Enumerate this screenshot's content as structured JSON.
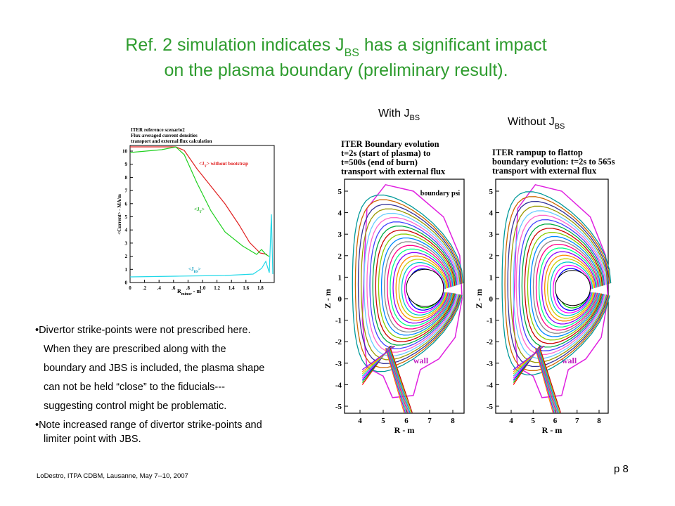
{
  "title": {
    "line1_before": "Ref. 2 simulation indicates J",
    "line1_sub": "BS",
    "line1_after": " has a significant impact",
    "line2": "on the plasma boundary (preliminary result)."
  },
  "labels": {
    "with": {
      "text": "With J",
      "sub": "BS"
    },
    "without": {
      "text": "Without J",
      "sub": "BS"
    }
  },
  "current_plot": {
    "title": [
      "ITER reference scenario2",
      "Flux-averaged current densities",
      "transport and external flux calculation"
    ],
    "ylabel": "<Current> - MA/m",
    "xlabel": {
      "text": "R",
      "sub": "minor",
      "after": " - m"
    },
    "xticks": [
      "0",
      ".2",
      ".4",
      ".6",
      ".8",
      "1.0",
      "1.2",
      "1.4",
      "1.6",
      "1.8"
    ],
    "yticks": [
      "0",
      "1",
      "2",
      "3",
      "4",
      "5",
      "6",
      "7",
      "8",
      "9",
      "10"
    ],
    "annotations": {
      "jt_no_bs": {
        "text": "<J",
        "sub": "T",
        "after": "> without bootstrap"
      },
      "jt": {
        "text": "<J",
        "sub": "T",
        "after": ">"
      },
      "jbs": {
        "text": "<J",
        "sub": "BS",
        "after": ">"
      }
    }
  },
  "boundary_with": {
    "title": [
      "ITER Boundary evolution",
      "t=2s (start of plasma) to",
      "t=500s (end of burn)",
      "transport with external flux"
    ],
    "legend": "boundary psi",
    "ylabel": "Z - m",
    "xlabel": "R - m",
    "wall": "wall",
    "yticks": [
      "5",
      "4",
      "3",
      "2",
      "1",
      "0",
      "-1",
      "-2",
      "-3",
      "-4",
      "-5"
    ],
    "xticks": [
      "4",
      "5",
      "6",
      "7",
      "8"
    ]
  },
  "boundary_without": {
    "title": [
      "ITER rampup to flattop",
      "boundary evolution: t=2s to 565s",
      "transport with external flux"
    ],
    "ylabel": "Z - m",
    "xlabel": "R - m",
    "wall": "wall",
    "yticks": [
      "5",
      "4",
      "3",
      "2",
      "1",
      "0",
      "-1",
      "-2",
      "-3",
      "-4",
      "-5"
    ],
    "xticks": [
      "4",
      "5",
      "6",
      "7",
      "8"
    ]
  },
  "bullets": [
    [
      "•Divertor strike-points were not prescribed here.",
      "When they are prescribed along with the",
      "boundary and JBS is included, the plasma shape",
      "can not be held “close” to the fiducials---",
      "suggesting control might be problematic."
    ],
    [
      "•Note increased range of divertor strike-points and",
      "limiter point with JBS."
    ]
  ],
  "footer": {
    "credit": "LoDestro, ITPA CDBM, Lausanne, May 7--10, 2007",
    "page": "p 8"
  }
}
